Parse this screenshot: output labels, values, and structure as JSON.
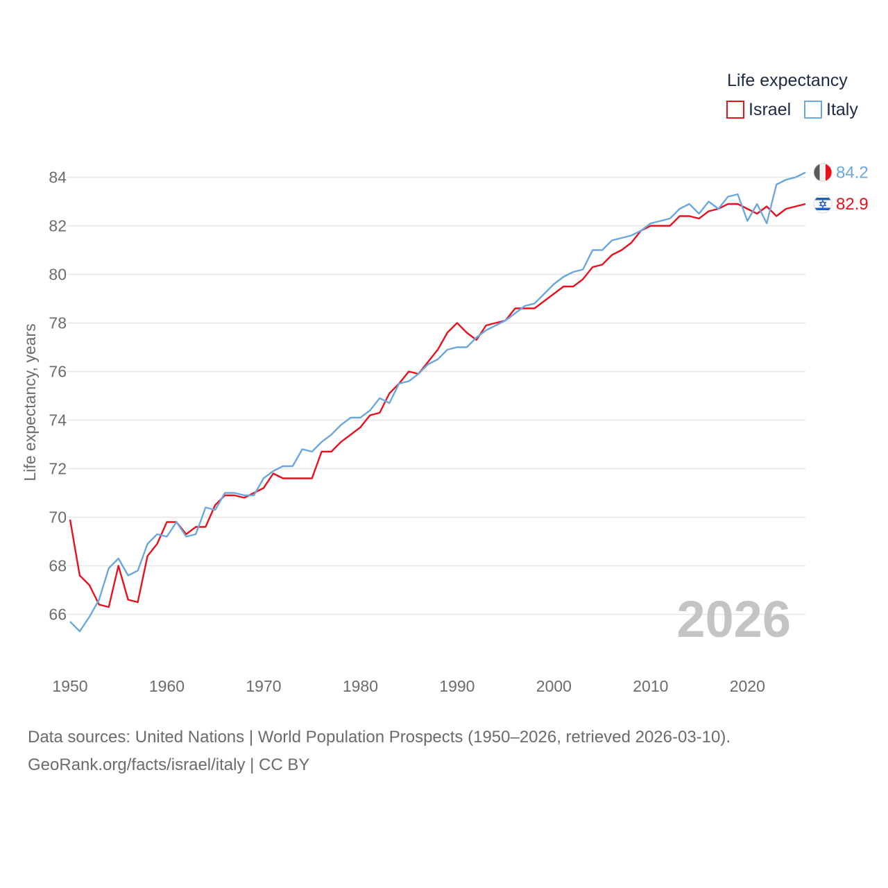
{
  "chart_data": {
    "type": "line",
    "ylabel": "Life expectancy, years",
    "xlabel": "",
    "xlim": [
      1950,
      2026
    ],
    "ylim": [
      64.5,
      85
    ],
    "x_ticks": [
      1950,
      1960,
      1970,
      1980,
      1990,
      2000,
      2010,
      2020
    ],
    "y_ticks": [
      66,
      68,
      70,
      72,
      74,
      76,
      78,
      80,
      82,
      84
    ],
    "grid": true,
    "legend_title": "Life expectancy",
    "legend_position": "top-right",
    "watermark_year": "2026",
    "x": [
      1950,
      1951,
      1952,
      1953,
      1954,
      1955,
      1956,
      1957,
      1958,
      1959,
      1960,
      1961,
      1962,
      1963,
      1964,
      1965,
      1966,
      1967,
      1968,
      1969,
      1970,
      1971,
      1972,
      1973,
      1974,
      1975,
      1976,
      1977,
      1978,
      1979,
      1980,
      1981,
      1982,
      1983,
      1984,
      1985,
      1986,
      1987,
      1988,
      1989,
      1990,
      1991,
      1992,
      1993,
      1994,
      1995,
      1996,
      1997,
      1998,
      1999,
      2000,
      2001,
      2002,
      2003,
      2004,
      2005,
      2006,
      2007,
      2008,
      2009,
      2010,
      2011,
      2012,
      2013,
      2014,
      2015,
      2016,
      2017,
      2018,
      2019,
      2020,
      2021,
      2022,
      2023,
      2024,
      2025,
      2026
    ],
    "series": [
      {
        "name": "Israel",
        "color": "#e8101c",
        "end_label": "82.9",
        "values": [
          69.9,
          67.6,
          67.2,
          66.4,
          66.3,
          68.0,
          66.6,
          66.5,
          68.4,
          68.9,
          69.8,
          69.8,
          69.3,
          69.6,
          69.6,
          70.5,
          70.9,
          70.9,
          70.8,
          71.0,
          71.2,
          71.8,
          71.6,
          71.6,
          71.6,
          71.6,
          72.7,
          72.7,
          73.1,
          73.4,
          73.7,
          74.2,
          74.3,
          75.1,
          75.5,
          76.0,
          75.9,
          76.4,
          76.9,
          77.6,
          78.0,
          77.6,
          77.3,
          77.9,
          78.0,
          78.1,
          78.6,
          78.6,
          78.6,
          78.9,
          79.2,
          79.5,
          79.5,
          79.8,
          80.3,
          80.4,
          80.8,
          81.0,
          81.3,
          81.8,
          82.0,
          82.0,
          82.0,
          82.4,
          82.4,
          82.3,
          82.6,
          82.7,
          82.9,
          82.9,
          82.7,
          82.5,
          82.8,
          82.4,
          82.7,
          82.8,
          82.9
        ]
      },
      {
        "name": "Italy",
        "color": "#6aa7e0",
        "end_label": "84.2",
        "values": [
          65.7,
          65.3,
          65.9,
          66.6,
          67.9,
          68.3,
          67.6,
          67.8,
          68.9,
          69.3,
          69.2,
          69.8,
          69.2,
          69.3,
          70.4,
          70.3,
          71.0,
          71.0,
          70.9,
          70.9,
          71.6,
          71.9,
          72.1,
          72.1,
          72.8,
          72.7,
          73.1,
          73.4,
          73.8,
          74.1,
          74.1,
          74.4,
          74.9,
          74.7,
          75.5,
          75.6,
          75.9,
          76.3,
          76.5,
          76.9,
          77.0,
          77.0,
          77.4,
          77.7,
          77.9,
          78.1,
          78.4,
          78.7,
          78.8,
          79.2,
          79.6,
          79.9,
          80.1,
          80.2,
          81.0,
          81.0,
          81.4,
          81.5,
          81.6,
          81.8,
          82.1,
          82.2,
          82.3,
          82.7,
          82.9,
          82.5,
          83.0,
          82.7,
          83.2,
          83.3,
          82.2,
          82.9,
          82.1,
          83.7,
          83.9,
          84.0,
          84.2
        ]
      }
    ]
  },
  "footer": {
    "line1": "Data sources: United Nations | World Population Prospects (1950–2026, retrieved 2026-03-10).",
    "line2": "GeoRank.org/facts/israel/italy | CC BY"
  }
}
